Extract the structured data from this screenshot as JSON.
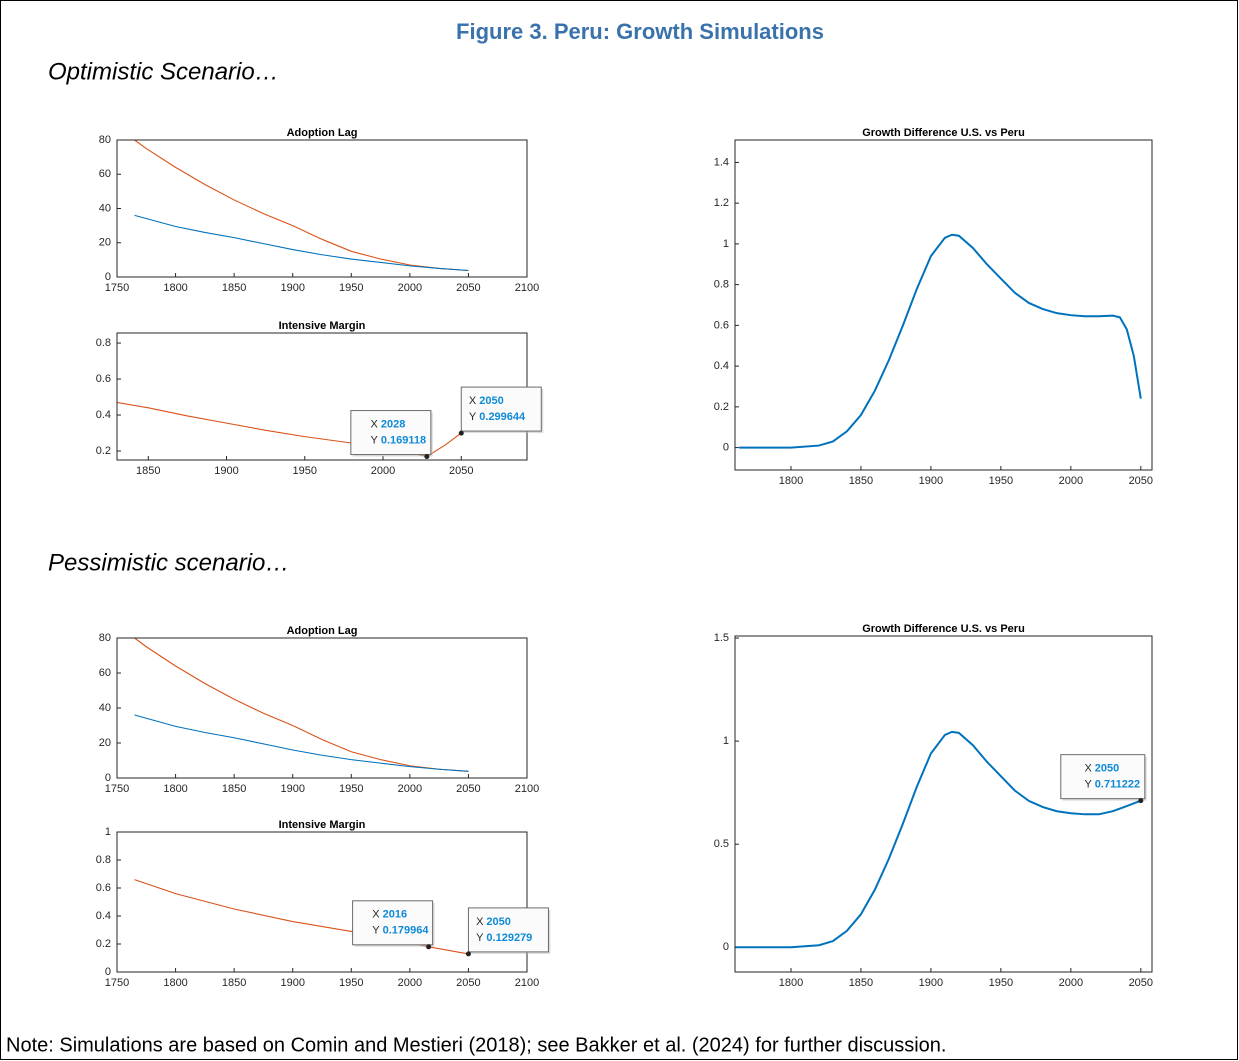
{
  "title": "Figure 3. Peru: Growth Simulations",
  "sections": [
    "Optimistic Scenario…",
    "Pessimistic scenario…"
  ],
  "note": "Note: Simulations are based on Comin and Mestieri (2018); see Bakker et al. (2024) for further discussion.",
  "chart_data": [
    {
      "type": "line",
      "title": "Adoption Lag",
      "xlim": [
        1750,
        2100
      ],
      "xticks": [
        1750,
        1800,
        1850,
        1900,
        1950,
        2000,
        2050,
        2100
      ],
      "ylim": [
        0,
        80
      ],
      "yticks": [
        0,
        20,
        40,
        60,
        80
      ],
      "series": [
        {
          "color": "#d95319",
          "x": [
            1765,
            1775,
            1800,
            1825,
            1850,
            1875,
            1900,
            1925,
            1950,
            1975,
            2000,
            2025,
            2050
          ],
          "values": [
            80,
            75,
            64,
            54,
            45,
            37,
            30,
            22,
            15,
            10.5,
            7,
            5,
            3.8
          ]
        },
        {
          "color": "#0072bd",
          "x": [
            1765,
            1800,
            1825,
            1850,
            1875,
            1900,
            1925,
            1950,
            1975,
            2000,
            2025,
            2050
          ],
          "values": [
            36,
            29.5,
            26,
            23,
            19.5,
            16,
            13,
            10.5,
            8.5,
            6.5,
            5,
            3.8
          ]
        }
      ]
    },
    {
      "type": "line",
      "title": "Intensive Margin",
      "xlim": [
        1830,
        2092
      ],
      "xticks": [
        1850,
        1900,
        1950,
        2000,
        2050
      ],
      "ylim": [
        0.15,
        0.856
      ],
      "yticks": [
        0.2,
        0.4,
        0.6,
        0.8
      ],
      "series": [
        {
          "color": "#d95319",
          "x": [
            1830,
            1850,
            1875,
            1900,
            1925,
            1950,
            1975,
            2000,
            2015,
            2028,
            2040,
            2050
          ],
          "values": [
            0.47,
            0.44,
            0.395,
            0.355,
            0.315,
            0.28,
            0.25,
            0.22,
            0.195,
            0.169118,
            0.235,
            0.299644
          ]
        }
      ],
      "annotations": [
        {
          "x_label": "X",
          "x": 2028,
          "y_label": "Y",
          "y": 0.169118
        },
        {
          "x_label": "X",
          "x": 2050,
          "y_label": "Y",
          "y": 0.299644
        }
      ]
    },
    {
      "type": "line",
      "title": "Growth Difference U.S. vs Peru",
      "xlim": [
        1760,
        2058
      ],
      "xticks": [
        1800,
        1850,
        1900,
        1950,
        2000,
        2050
      ],
      "ylim": [
        -0.11,
        1.51
      ],
      "yticks": [
        0,
        0.2,
        0.4,
        0.6,
        0.8,
        1,
        1.2,
        1.4
      ],
      "series": [
        {
          "color": "#0072bd",
          "x": [
            1763,
            1800,
            1820,
            1830,
            1840,
            1850,
            1860,
            1870,
            1880,
            1890,
            1900,
            1910,
            1915,
            1920,
            1930,
            1940,
            1950,
            1960,
            1970,
            1980,
            1990,
            2000,
            2010,
            2020,
            2030,
            2035,
            2040,
            2045,
            2050
          ],
          "values": [
            0,
            0,
            0.01,
            0.03,
            0.08,
            0.16,
            0.28,
            0.43,
            0.6,
            0.78,
            0.94,
            1.03,
            1.045,
            1.04,
            0.98,
            0.9,
            0.83,
            0.76,
            0.71,
            0.68,
            0.66,
            0.65,
            0.645,
            0.645,
            0.648,
            0.64,
            0.58,
            0.45,
            0.24
          ]
        }
      ]
    },
    {
      "type": "line",
      "title": "Adoption Lag",
      "xlim": [
        1750,
        2100
      ],
      "xticks": [
        1750,
        1800,
        1850,
        1900,
        1950,
        2000,
        2050,
        2100
      ],
      "ylim": [
        0,
        80
      ],
      "yticks": [
        0,
        20,
        40,
        60,
        80
      ],
      "series": [
        {
          "color": "#d95319",
          "x": [
            1765,
            1775,
            1800,
            1825,
            1850,
            1875,
            1900,
            1925,
            1950,
            1975,
            2000,
            2025,
            2050
          ],
          "values": [
            80,
            75,
            64,
            54,
            45,
            37,
            30,
            22,
            15,
            10.5,
            7,
            5,
            3.8
          ]
        },
        {
          "color": "#0072bd",
          "x": [
            1765,
            1800,
            1825,
            1850,
            1875,
            1900,
            1925,
            1950,
            1975,
            2000,
            2025,
            2050
          ],
          "values": [
            36,
            29.5,
            26,
            23,
            19.5,
            16,
            13,
            10.5,
            8.5,
            6.5,
            5,
            3.8
          ]
        }
      ]
    },
    {
      "type": "line",
      "title": "Intensive Margin",
      "xlim": [
        1750,
        2100
      ],
      "xticks": [
        1750,
        1800,
        1850,
        1900,
        1950,
        2000,
        2050,
        2100
      ],
      "ylim": [
        0,
        1
      ],
      "yticks": [
        0,
        0.2,
        0.4,
        0.6,
        0.8,
        1
      ],
      "series": [
        {
          "color": "#0072bd",
          "x": [
            1765,
            2050
          ],
          "values": [
            1,
            1
          ]
        },
        {
          "color": "#d95319",
          "x": [
            1765,
            1800,
            1850,
            1900,
            1950,
            2000,
            2016,
            2050
          ],
          "values": [
            0.66,
            0.56,
            0.45,
            0.36,
            0.29,
            0.21,
            0.179964,
            0.129279
          ]
        }
      ],
      "annotations": [
        {
          "x_label": "X",
          "x": 2016,
          "y_label": "Y",
          "y": 0.179964
        },
        {
          "x_label": "X",
          "x": 2050,
          "y_label": "Y",
          "y": 0.129279
        }
      ]
    },
    {
      "type": "line",
      "title": "Growth Difference U.S. vs Peru",
      "xlim": [
        1760,
        2058
      ],
      "xticks": [
        1800,
        1850,
        1900,
        1950,
        2000,
        2050
      ],
      "ylim": [
        -0.12,
        1.51
      ],
      "yticks": [
        0,
        0.5,
        1,
        1.5
      ],
      "series": [
        {
          "color": "#0072bd",
          "x": [
            1760,
            1800,
            1820,
            1830,
            1840,
            1850,
            1860,
            1870,
            1880,
            1890,
            1900,
            1910,
            1915,
            1920,
            1930,
            1940,
            1950,
            1960,
            1970,
            1980,
            1990,
            2000,
            2010,
            2020,
            2030,
            2040,
            2050
          ],
          "values": [
            0,
            0,
            0.01,
            0.03,
            0.08,
            0.16,
            0.28,
            0.43,
            0.6,
            0.78,
            0.94,
            1.03,
            1.045,
            1.04,
            0.98,
            0.9,
            0.83,
            0.76,
            0.71,
            0.68,
            0.66,
            0.65,
            0.645,
            0.645,
            0.66,
            0.685,
            0.711222
          ]
        }
      ],
      "annotations": [
        {
          "x_label": "X",
          "x": 2050,
          "y_label": "Y",
          "y": 0.711222
        }
      ]
    }
  ]
}
